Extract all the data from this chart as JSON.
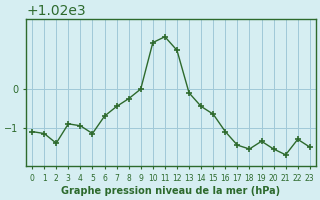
{
  "x": [
    0,
    1,
    2,
    3,
    4,
    5,
    6,
    7,
    8,
    9,
    10,
    11,
    12,
    13,
    14,
    15,
    16,
    17,
    18,
    19,
    20,
    21,
    22,
    23
  ],
  "y": [
    1018.9,
    1018.85,
    1018.6,
    1019.1,
    1019.05,
    1018.85,
    1019.3,
    1019.55,
    1019.75,
    1020.0,
    1021.2,
    1021.35,
    1021.0,
    1019.9,
    1019.55,
    1019.35,
    1018.9,
    1018.55,
    1018.45,
    1018.65,
    1018.45,
    1018.3,
    1018.7,
    1018.5
  ],
  "bg_color": "#d6eef2",
  "line_color": "#2d6a2d",
  "marker_color": "#2d6a2d",
  "grid_color": "#a0c8d8",
  "axis_color": "#2d6a2d",
  "label_color": "#2d6a2d",
  "yticks": [
    1019,
    1020
  ],
  "xtick_labels": [
    "0",
    "1",
    "2",
    "3",
    "4",
    "5",
    "6",
    "7",
    "8",
    "9",
    "10",
    "11",
    "12",
    "13",
    "14",
    "15",
    "16",
    "17",
    "18",
    "19",
    "20",
    "21",
    "22",
    "23"
  ],
  "xlabel": "Graphe pression niveau de la mer (hPa)",
  "ylim": [
    1018.0,
    1021.8
  ],
  "xlim": [
    -0.5,
    23.5
  ]
}
